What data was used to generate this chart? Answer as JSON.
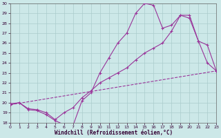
{
  "xlabel": "Windchill (Refroidissement éolien,°C)",
  "xlim": [
    0,
    23
  ],
  "ylim": [
    18,
    30
  ],
  "xticks": [
    0,
    1,
    2,
    3,
    4,
    5,
    6,
    7,
    8,
    9,
    10,
    11,
    12,
    13,
    14,
    15,
    16,
    17,
    18,
    19,
    20,
    21,
    22,
    23
  ],
  "yticks": [
    18,
    19,
    20,
    21,
    22,
    23,
    24,
    25,
    26,
    27,
    28,
    29,
    30
  ],
  "background_color": "#cce8e8",
  "grid_color": "#aacccc",
  "line_color": "#993399",
  "line1_x": [
    0,
    1,
    2,
    3,
    4,
    5,
    6,
    7,
    8,
    9,
    10,
    11,
    12,
    13,
    14,
    15,
    16,
    17,
    18,
    19,
    20,
    21,
    22,
    23
  ],
  "line1_y": [
    19.8,
    20.0,
    19.3,
    19.2,
    18.8,
    18.2,
    17.8,
    17.7,
    20.2,
    21.0,
    23.0,
    24.5,
    26.0,
    27.0,
    29.0,
    30.0,
    29.8,
    27.5,
    27.8,
    28.8,
    28.8,
    26.2,
    24.0,
    23.2
  ],
  "line2_x": [
    0,
    1,
    2,
    3,
    4,
    5,
    6,
    7,
    8,
    9,
    10,
    11,
    12,
    13,
    14,
    15,
    16,
    17,
    18,
    19,
    20,
    21,
    22,
    23
  ],
  "line2_y": [
    19.9,
    20.0,
    19.4,
    19.3,
    19.0,
    18.3,
    19.0,
    19.5,
    20.5,
    21.2,
    22.0,
    22.5,
    23.0,
    23.5,
    24.3,
    25.0,
    25.5,
    26.0,
    27.2,
    28.8,
    28.5,
    26.2,
    25.8,
    23.2
  ],
  "line3_x": [
    0,
    23
  ],
  "line3_y": [
    19.8,
    23.2
  ]
}
